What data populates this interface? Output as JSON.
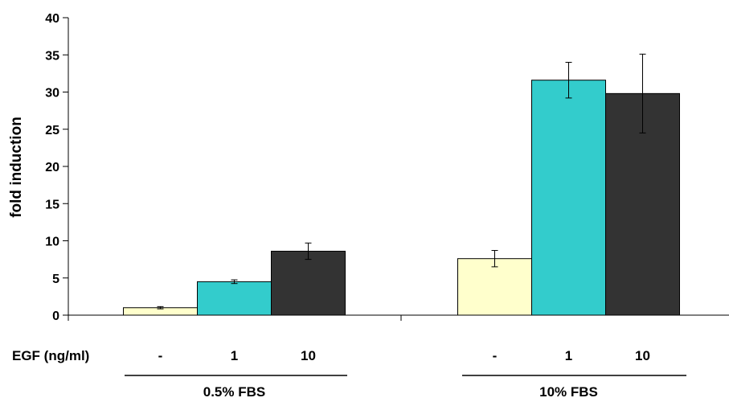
{
  "chart_data": {
    "type": "bar",
    "ylabel": "fold induction",
    "ylim": [
      0,
      40
    ],
    "yticks": [
      0,
      5,
      10,
      15,
      20,
      25,
      30,
      35,
      40
    ],
    "row_label": "EGF (ng/ml)",
    "categories": [
      "0.5% FBS",
      "10% FBS"
    ],
    "series": [
      {
        "label": "-",
        "color": "#ffffcc",
        "values": [
          1.0,
          7.6
        ],
        "errors": [
          0.15,
          1.1
        ]
      },
      {
        "label": "1",
        "color": "#33cccc",
        "values": [
          4.5,
          31.6
        ],
        "errors": [
          0.25,
          2.4
        ]
      },
      {
        "label": "10",
        "color": "#333333",
        "values": [
          8.6,
          29.8
        ],
        "errors": [
          1.1,
          5.3
        ]
      }
    ],
    "grid": false,
    "legend": "none"
  }
}
